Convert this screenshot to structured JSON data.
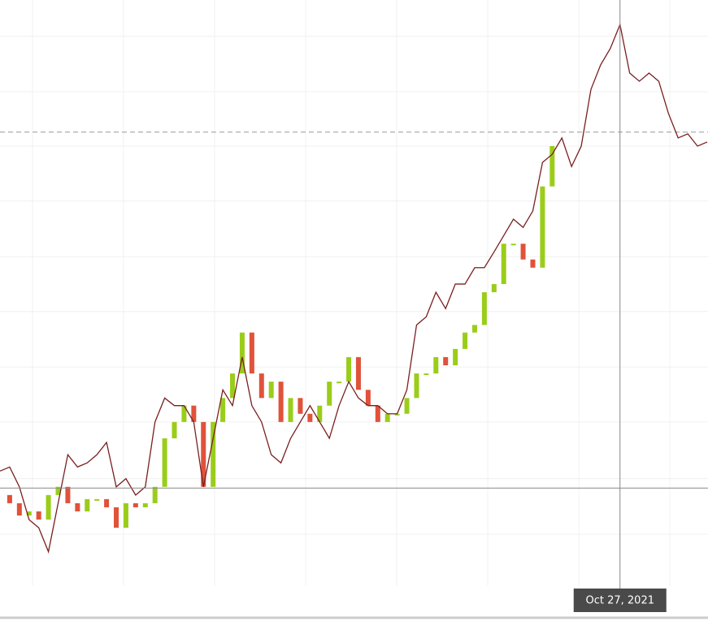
{
  "chart_data": {
    "type": "line",
    "categories": [
      null,
      null,
      null,
      null,
      null,
      null,
      null,
      null,
      null,
      null,
      null,
      null,
      null,
      null,
      null,
      null,
      null,
      null,
      null,
      null,
      null,
      null,
      null,
      null,
      null,
      null,
      null,
      null,
      null,
      null,
      null,
      null,
      null,
      null,
      null,
      null,
      null,
      null,
      null,
      null,
      null,
      null,
      null,
      null,
      null,
      null,
      null,
      null,
      null,
      null,
      null,
      null,
      null,
      null,
      null,
      null,
      null,
      null,
      null,
      null,
      null,
      null,
      null,
      null,
      null,
      null,
      null,
      null,
      null,
      null,
      null,
      null,
      null,
      null
    ],
    "series": [
      {
        "color": "#7a1f1f",
        "values": [
          19.4,
          20.1,
          16.7,
          11.1,
          9.7,
          5.6,
          13.9,
          22.2,
          20.1,
          20.8,
          22.2,
          24.3,
          16.7,
          18.1,
          15.3,
          16.7,
          27.8,
          31.9,
          30.6,
          30.6,
          27.8,
          16.7,
          25,
          33.3,
          30.6,
          38.9,
          30.6,
          27.8,
          22.2,
          20.8,
          25,
          27.8,
          30.6,
          27.8,
          25,
          30.6,
          34.7,
          31.9,
          30.6,
          30.6,
          29.2,
          29.2,
          33.3,
          44.4,
          45.8,
          50,
          47.2,
          51.4,
          51.4,
          54.2,
          54.2,
          56.9,
          59.7,
          62.5,
          61.1,
          63.9,
          72.2,
          73.6,
          76.4,
          71.5,
          75,
          84.7,
          88.9,
          91.7,
          95.8,
          87.5,
          86.1,
          87.5,
          86.1,
          80.6,
          76.4,
          77.1,
          75,
          75.7
        ]
      },
      {
        "up_color": "#9acd1a",
        "down_color": "#e0523a",
        "values": [
          15.3,
          13.9,
          11.8,
          12.5,
          11.1,
          15.3,
          16.7,
          13.9,
          12.5,
          14.6,
          14.6,
          13.2,
          9.7,
          13.9,
          13.2,
          13.9,
          16.7,
          25,
          27.8,
          30.6,
          27.8,
          16.7,
          27.8,
          31.9,
          36.1,
          43.1,
          36.1,
          31.9,
          34.7,
          27.8,
          31.9,
          29.2,
          27.8,
          30.6,
          34.7,
          34.7,
          38.9,
          33.3,
          30.6,
          27.8,
          29.2,
          29.2,
          31.9,
          36.1,
          36.1,
          38.9,
          37.5,
          40.3,
          43.1,
          44.4,
          50,
          51.4,
          58.3,
          58.3,
          55.6,
          54.2,
          68.1,
          75,
          null,
          null,
          null,
          null,
          null,
          null,
          null,
          null,
          null,
          null,
          null,
          null,
          null,
          null,
          null,
          null
        ]
      }
    ],
    "ylim": [
      0,
      100
    ],
    "ygrid": [
      93.8,
      84.3,
      75,
      65.6,
      56.1,
      46.7,
      37.2,
      27.8,
      18.1,
      8.6
    ],
    "reference_line": 77.4,
    "crosshair": {
      "index": 64,
      "value": 16.5,
      "label": "Oct 27, 2021"
    }
  }
}
